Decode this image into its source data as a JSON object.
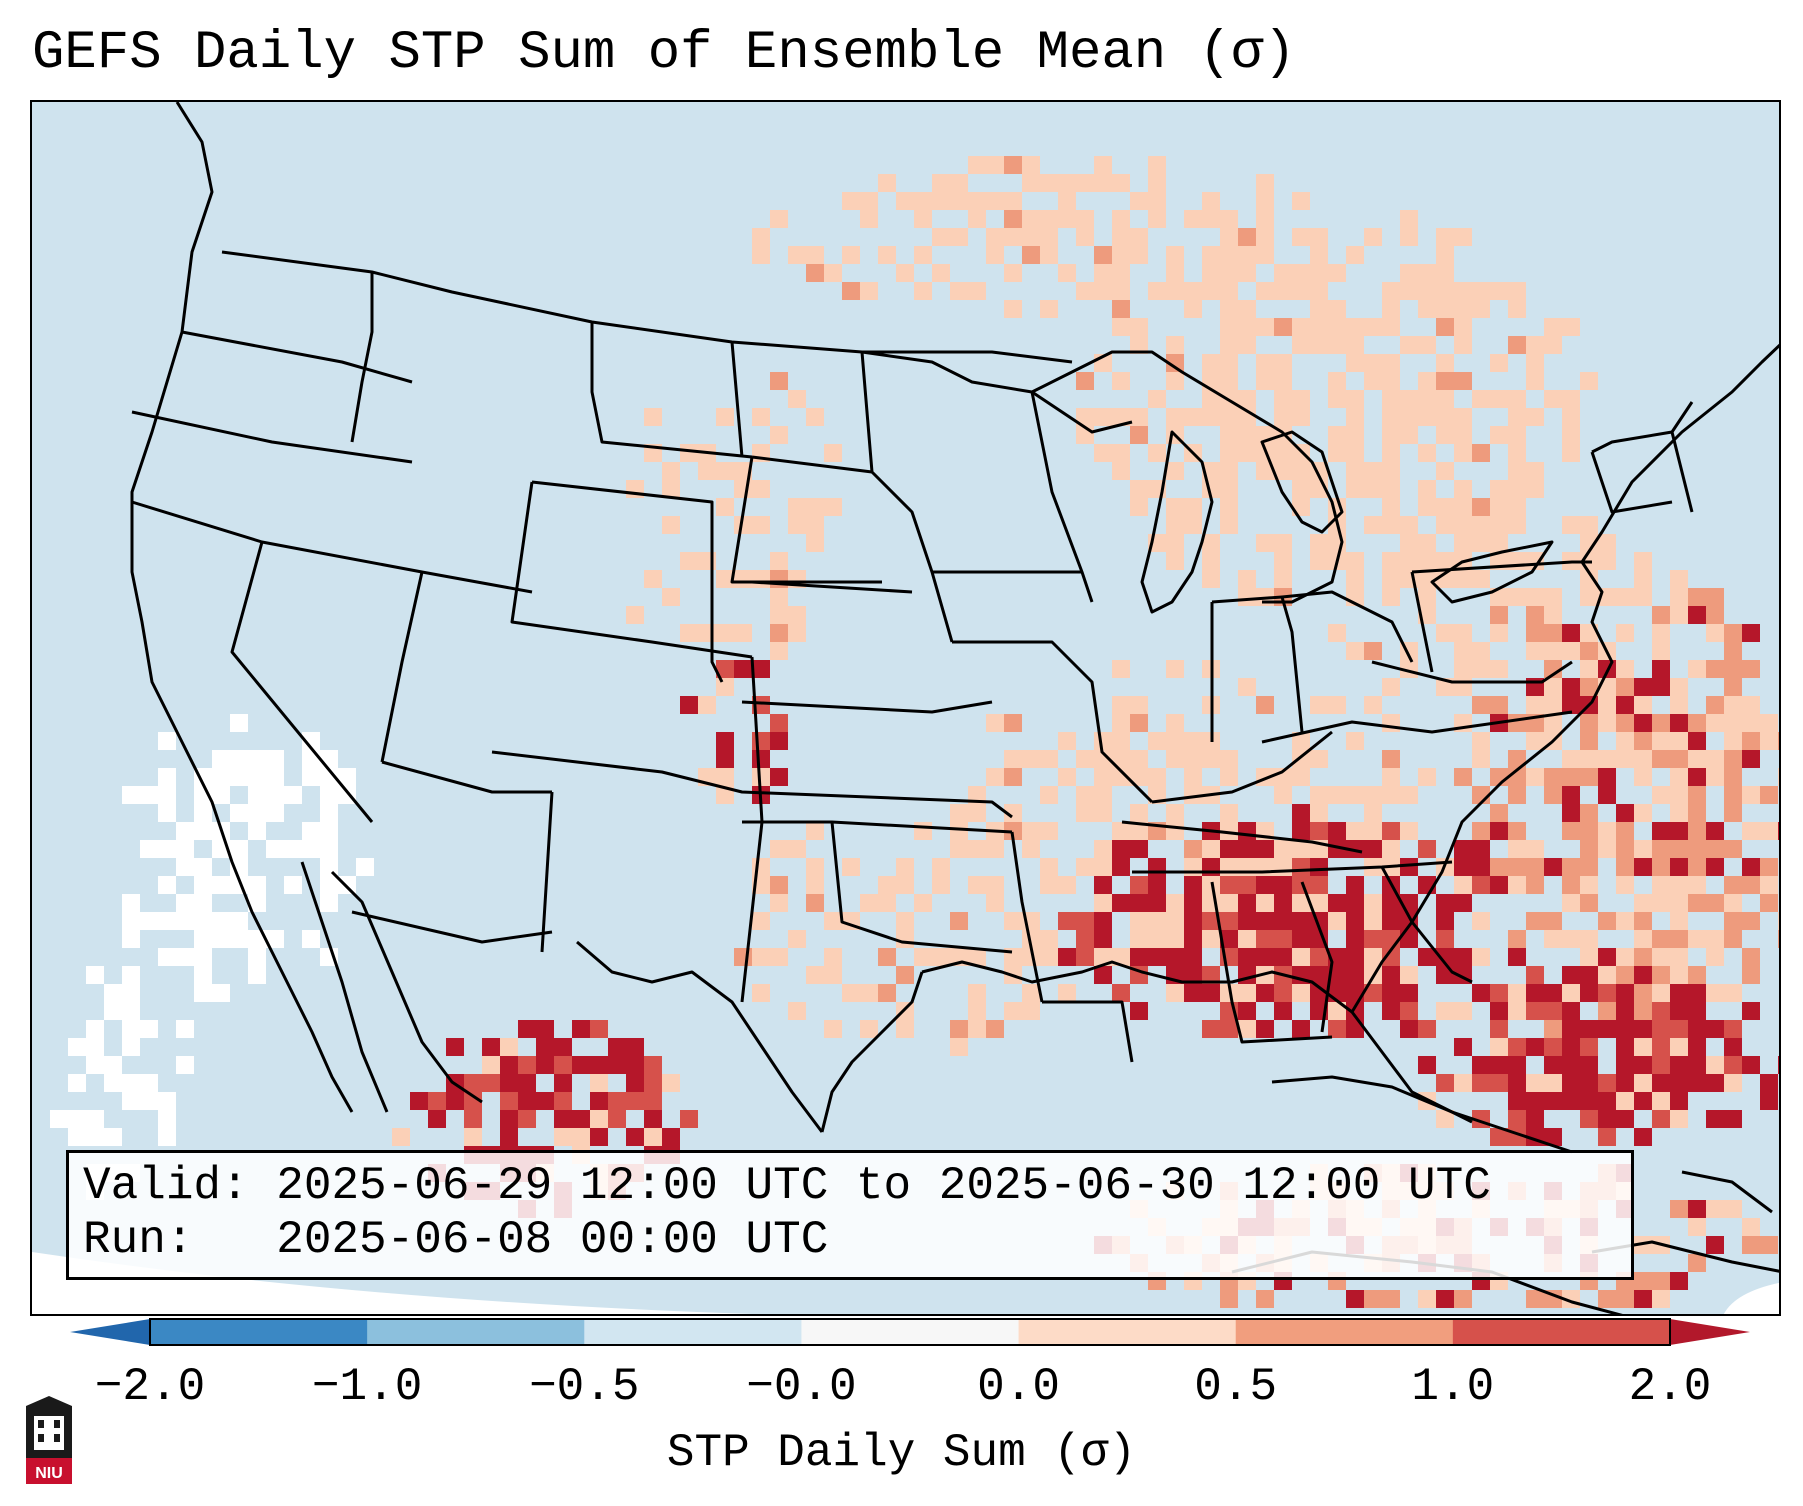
{
  "title": "GEFS Daily STP Sum of Ensemble Mean (σ)",
  "info": {
    "valid": "Valid: 2025-06-29 12:00 UTC to 2025-06-30 12:00 UTC",
    "run": "Run:   2025-06-08 00:00 UTC"
  },
  "colorbar": {
    "label": "STP Daily Sum (σ)",
    "ticks": [
      "−2.0",
      "−1.0",
      "−0.5",
      "−0.0",
      "0.0",
      "0.5",
      "1.0",
      "2.0"
    ],
    "colors": [
      "#3b88c4",
      "#8cc0dd",
      "#d2e6f1",
      "#f7f7f7",
      "#fddbc7",
      "#f19e7e",
      "#d6514b"
    ],
    "under_color": "#2166ac",
    "over_color": "#b2182b"
  },
  "logo": {
    "label": "NIU"
  },
  "colors": {
    "land_shade": "#cfe3ee",
    "light_red": "#fbd0b7",
    "mid_red": "#ee9b7d",
    "red": "#d6514b",
    "dark_red": "#b5172a",
    "white": "#ffffff"
  }
}
